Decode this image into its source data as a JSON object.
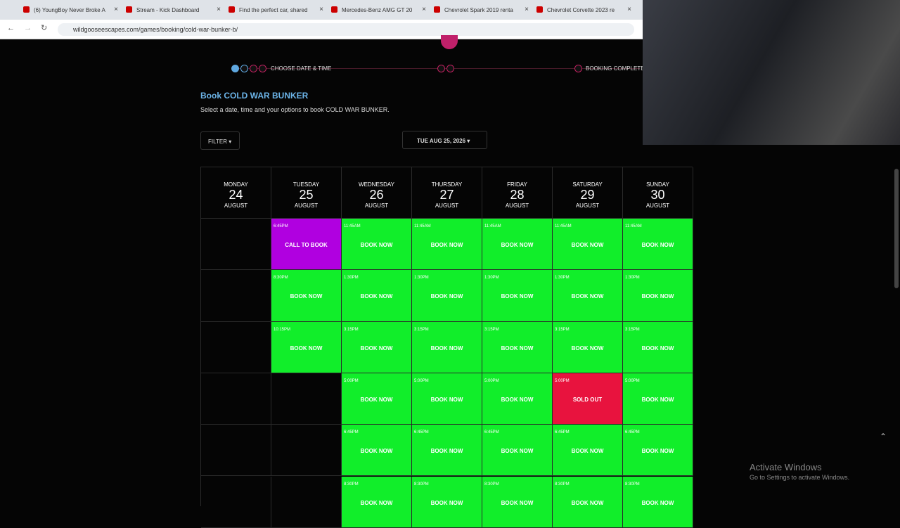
{
  "browser": {
    "tabs": [
      "(6) YoungBoy Never Broke A",
      "Stream - Kick Dashboard",
      "Find the perfect car, shared",
      "Mercedes-Benz AMG GT 20",
      "Chevrolet Spark 2019 renta",
      "Chevrolet Corvette 2023 re"
    ],
    "url": "wildgooseescapes.com/games/booking/cold-war-bunker-b/"
  },
  "stepper": {
    "step1": "CHOOSE DATE & TIME",
    "step3": "BOOKING COMPLETE"
  },
  "booking": {
    "title": "Book COLD WAR BUNKER",
    "subtitle": "Select a date, time and your options to book COLD WAR BUNKER.",
    "filter": "FILTER",
    "date": "TUE AUG 25, 2026"
  },
  "calendar": {
    "days": [
      {
        "weekday": "MONDAY",
        "day": "24",
        "month": "AUGUST"
      },
      {
        "weekday": "TUESDAY",
        "day": "25",
        "month": "AUGUST"
      },
      {
        "weekday": "WEDNESDAY",
        "day": "26",
        "month": "AUGUST"
      },
      {
        "weekday": "THURSDAY",
        "day": "27",
        "month": "AUGUST"
      },
      {
        "weekday": "FRIDAY",
        "day": "28",
        "month": "AUGUST"
      },
      {
        "weekday": "SATURDAY",
        "day": "29",
        "month": "AUGUST"
      },
      {
        "weekday": "SUNDAY",
        "day": "30",
        "month": "AUGUST"
      }
    ],
    "rows": [
      [
        null,
        {
          "time": "6:45PM",
          "label": "CALL TO BOOK",
          "color": "#b000e0"
        },
        {
          "time": "11:45AM",
          "label": "BOOK NOW",
          "color": "#11ee2a"
        },
        {
          "time": "11:45AM",
          "label": "BOOK NOW",
          "color": "#11ee2a"
        },
        {
          "time": "11:45AM",
          "label": "BOOK NOW",
          "color": "#11ee2a"
        },
        {
          "time": "11:45AM",
          "label": "BOOK NOW",
          "color": "#11ee2a"
        },
        {
          "time": "11:45AM",
          "label": "BOOK NOW",
          "color": "#11ee2a"
        }
      ],
      [
        null,
        {
          "time": "8:30PM",
          "label": "BOOK NOW",
          "color": "#11ee2a"
        },
        {
          "time": "1:30PM",
          "label": "BOOK NOW",
          "color": "#11ee2a"
        },
        {
          "time": "1:30PM",
          "label": "BOOK NOW",
          "color": "#11ee2a"
        },
        {
          "time": "1:30PM",
          "label": "BOOK NOW",
          "color": "#11ee2a"
        },
        {
          "time": "1:30PM",
          "label": "BOOK NOW",
          "color": "#11ee2a"
        },
        {
          "time": "1:30PM",
          "label": "BOOK NOW",
          "color": "#11ee2a"
        }
      ],
      [
        null,
        {
          "time": "10:15PM",
          "label": "BOOK NOW",
          "color": "#11ee2a"
        },
        {
          "time": "3:15PM",
          "label": "BOOK NOW",
          "color": "#11ee2a"
        },
        {
          "time": "3:15PM",
          "label": "BOOK NOW",
          "color": "#11ee2a"
        },
        {
          "time": "3:15PM",
          "label": "BOOK NOW",
          "color": "#11ee2a"
        },
        {
          "time": "3:15PM",
          "label": "BOOK NOW",
          "color": "#11ee2a"
        },
        {
          "time": "3:15PM",
          "label": "BOOK NOW",
          "color": "#11ee2a"
        }
      ],
      [
        null,
        null,
        {
          "time": "5:00PM",
          "label": "BOOK NOW",
          "color": "#11ee2a"
        },
        {
          "time": "5:00PM",
          "label": "BOOK NOW",
          "color": "#11ee2a"
        },
        {
          "time": "5:00PM",
          "label": "BOOK NOW",
          "color": "#11ee2a"
        },
        {
          "time": "5:00PM",
          "label": "SOLD OUT",
          "color": "#e8133e"
        },
        {
          "time": "5:00PM",
          "label": "BOOK NOW",
          "color": "#11ee2a"
        }
      ],
      [
        null,
        null,
        {
          "time": "6:45PM",
          "label": "BOOK NOW",
          "color": "#11ee2a"
        },
        {
          "time": "6:45PM",
          "label": "BOOK NOW",
          "color": "#11ee2a"
        },
        {
          "time": "6:45PM",
          "label": "BOOK NOW",
          "color": "#11ee2a"
        },
        {
          "time": "6:45PM",
          "label": "BOOK NOW",
          "color": "#11ee2a"
        },
        {
          "time": "6:45PM",
          "label": "BOOK NOW",
          "color": "#11ee2a"
        }
      ],
      [
        null,
        null,
        {
          "time": "8:30PM",
          "label": "BOOK NOW",
          "color": "#11ee2a"
        },
        {
          "time": "8:30PM",
          "label": "BOOK NOW",
          "color": "#11ee2a"
        },
        {
          "time": "8:30PM",
          "label": "BOOK NOW",
          "color": "#11ee2a"
        },
        {
          "time": "8:30PM",
          "label": "BOOK NOW",
          "color": "#11ee2a"
        },
        {
          "time": "8:30PM",
          "label": "BOOK NOW",
          "color": "#11ee2a"
        }
      ]
    ]
  },
  "watermark": {
    "title": "Activate Windows",
    "text": "Go to Settings to activate Windows."
  }
}
